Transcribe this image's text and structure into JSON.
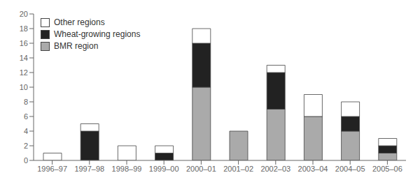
{
  "chart_data": {
    "type": "bar",
    "stacked": true,
    "categories": [
      "1996–97",
      "1997–98",
      "1998–99",
      "1999–00",
      "2000–01",
      "2001–02",
      "2002–03",
      "2003–04",
      "2004–05",
      "2005–06"
    ],
    "series": [
      {
        "name": "BMR region",
        "color": "#aaaaaa",
        "values": [
          0,
          0,
          0,
          0,
          10,
          4,
          7,
          6,
          4,
          1
        ]
      },
      {
        "name": "Wheat-growing regions",
        "color": "#222222",
        "values": [
          0,
          4,
          0,
          1,
          6,
          0,
          5,
          0,
          2,
          1
        ]
      },
      {
        "name": "Other regions",
        "color": "#ffffff",
        "values": [
          1,
          1,
          2,
          1,
          2,
          0,
          1,
          3,
          2,
          1
        ]
      }
    ],
    "ylim": [
      0,
      20
    ],
    "yticks": [
      0,
      2,
      4,
      6,
      8,
      10,
      12,
      14,
      16,
      18,
      20
    ],
    "grid": false,
    "legend": "upper left"
  }
}
